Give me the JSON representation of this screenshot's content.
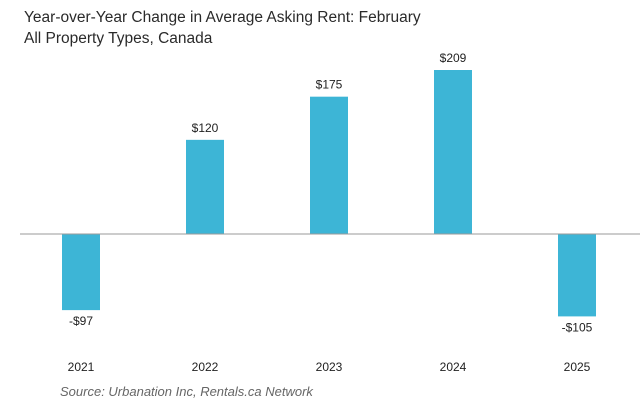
{
  "chart_data": {
    "type": "bar",
    "title": "Year-over-Year Change in Average Asking Rent: February",
    "subtitle": "All Property Types, Canada",
    "categories": [
      "2021",
      "2022",
      "2023",
      "2024",
      "2025"
    ],
    "values": [
      -97,
      120,
      175,
      209,
      -105
    ],
    "data_labels": [
      "-$97",
      "$120",
      "$175",
      "$209",
      "-$105"
    ],
    "xlabel": "",
    "ylabel": "",
    "ylim": [
      -105,
      209
    ],
    "grid": false,
    "legend": "none",
    "bar_color": "#3db5d6",
    "zero_line_color": "#9a9a9a"
  },
  "source": "Source: Urbanation Inc, Rentals.ca Network"
}
